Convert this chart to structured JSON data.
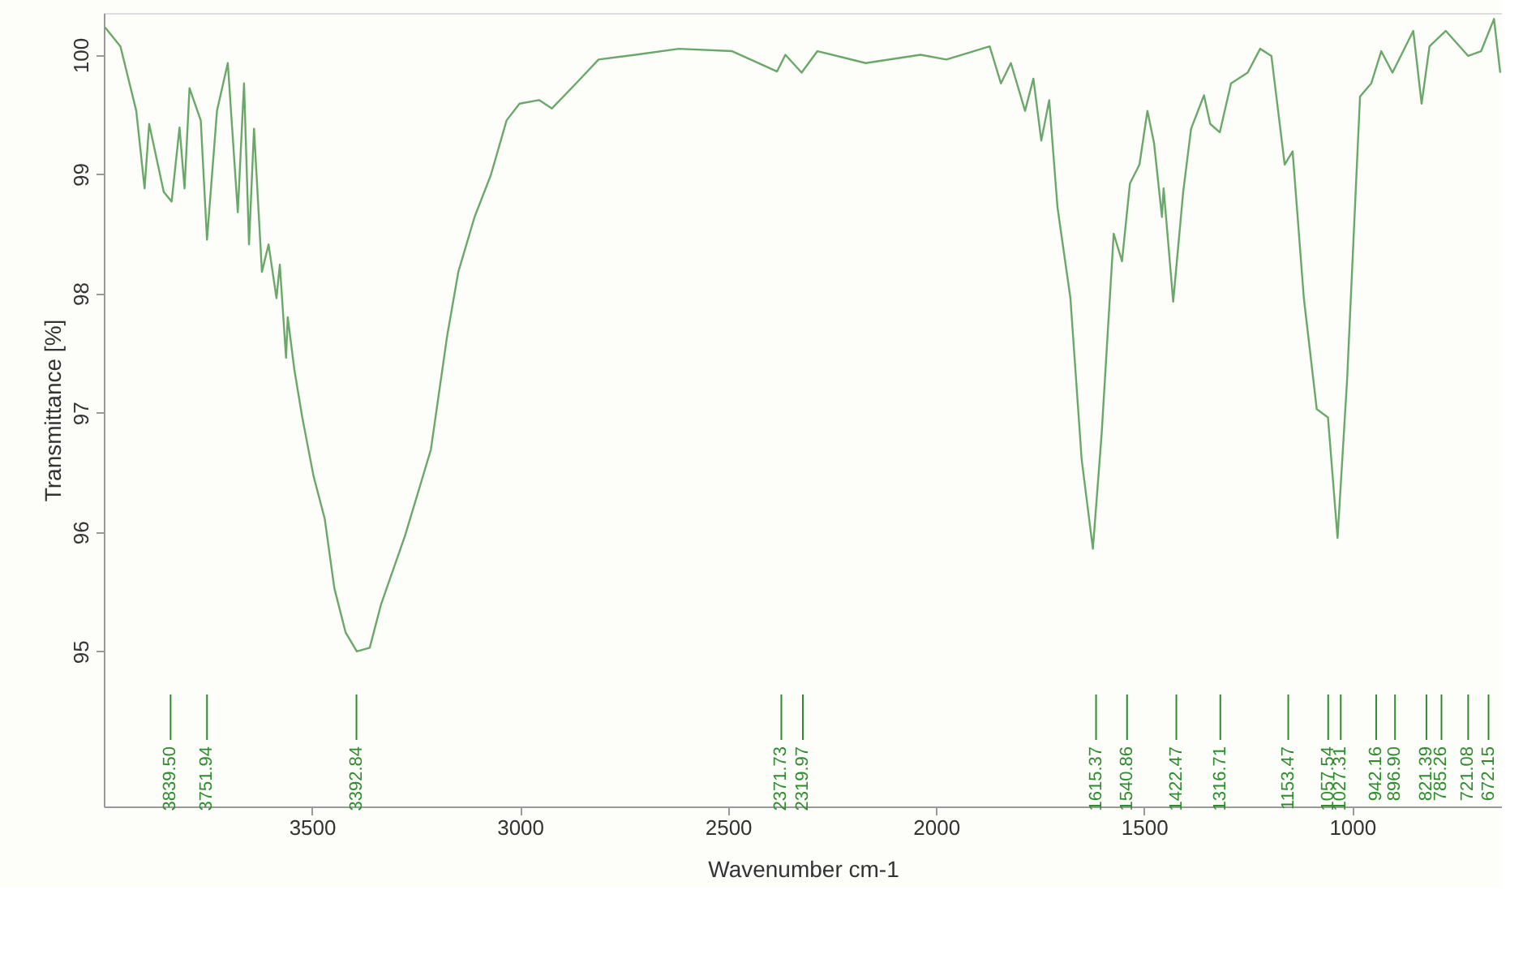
{
  "chart_data": {
    "type": "line",
    "xlabel": "Wavenumber cm-1",
    "ylabel": "Transmittance [%]",
    "xlim": [
      4000,
      640
    ],
    "ylim": [
      93.7,
      100.35
    ],
    "xticks": [
      3500,
      3000,
      2500,
      2000,
      1500,
      1000
    ],
    "yticks": [
      95,
      96,
      97,
      98,
      99,
      100
    ],
    "grid": false,
    "marker": "none",
    "line_style": "solid",
    "series": [
      {
        "color": "#6aa86a",
        "x": [
          3997,
          3960,
          3922,
          3902,
          3891,
          3856,
          3837,
          3818,
          3806,
          3794,
          3767,
          3752,
          3728,
          3702,
          3678,
          3663,
          3651,
          3639,
          3620,
          3604,
          3585,
          3577,
          3562,
          3558,
          3542,
          3523,
          3496,
          3469,
          3446,
          3419,
          3392,
          3361,
          3334,
          3276,
          3214,
          3175,
          3148,
          3109,
          3070,
          3032,
          3001,
          2954,
          2923,
          2865,
          2811,
          2722,
          2618,
          2490,
          2382,
          2362,
          2323,
          2285,
          2169,
          2037,
          1975,
          1871,
          1844,
          1820,
          1786,
          1766,
          1747,
          1728,
          1708,
          1677,
          1650,
          1623,
          1602,
          1573,
          1553,
          1534,
          1511,
          1492,
          1476,
          1457,
          1453,
          1430,
          1406,
          1387,
          1356,
          1341,
          1318,
          1291,
          1251,
          1221,
          1194,
          1162,
          1143,
          1116,
          1085,
          1058,
          1035,
          1012,
          981,
          954,
          930,
          903,
          853,
          833,
          814,
          775,
          721,
          690,
          659,
          644
        ],
        "values": [
          100.23,
          100.07,
          99.53,
          98.88,
          99.42,
          98.85,
          98.77,
          99.39,
          98.88,
          99.72,
          99.45,
          98.45,
          99.53,
          99.93,
          98.68,
          99.76,
          98.41,
          99.38,
          98.18,
          98.41,
          97.96,
          98.24,
          97.46,
          97.8,
          97.36,
          96.96,
          96.47,
          96.11,
          95.53,
          95.16,
          95.0,
          95.03,
          95.39,
          95.97,
          96.69,
          97.64,
          98.18,
          98.64,
          98.99,
          99.45,
          99.59,
          99.62,
          99.55,
          99.76,
          99.96,
          100.0,
          100.05,
          100.03,
          99.86,
          100.0,
          99.85,
          100.03,
          99.93,
          100.0,
          99.96,
          100.07,
          99.76,
          99.93,
          99.53,
          99.8,
          99.28,
          99.62,
          98.72,
          97.96,
          96.61,
          95.86,
          96.82,
          98.5,
          98.27,
          98.92,
          99.08,
          99.53,
          99.26,
          98.64,
          98.88,
          97.93,
          98.85,
          99.38,
          99.66,
          99.42,
          99.35,
          99.76,
          99.85,
          100.05,
          99.99,
          99.08,
          99.19,
          97.96,
          97.03,
          96.96,
          95.95,
          97.28,
          99.65,
          99.76,
          100.03,
          99.85,
          100.2,
          99.59,
          100.07,
          100.2,
          99.99,
          100.03,
          100.3,
          99.85
        ]
      }
    ],
    "ref_lines": [
      {
        "axis": "x",
        "value": 3839.5,
        "label": "3839.50",
        "color": "#2e8b2e"
      },
      {
        "axis": "x",
        "value": 3751.94,
        "label": "3751.94",
        "color": "#2e8b2e"
      },
      {
        "axis": "x",
        "value": 3392.84,
        "label": "3392.84",
        "color": "#2e8b2e"
      },
      {
        "axis": "x",
        "value": 2371.73,
        "label": "2371.73",
        "color": "#2e8b2e"
      },
      {
        "axis": "x",
        "value": 2319.97,
        "label": "2319.97",
        "color": "#2e8b2e"
      },
      {
        "axis": "x",
        "value": 1615.37,
        "label": "1615.37",
        "color": "#2e8b2e"
      },
      {
        "axis": "x",
        "value": 1540.86,
        "label": "1540.86",
        "color": "#2e8b2e"
      },
      {
        "axis": "x",
        "value": 1422.47,
        "label": "1422.47",
        "color": "#2e8b2e"
      },
      {
        "axis": "x",
        "value": 1316.71,
        "label": "1316.71",
        "color": "#2e8b2e"
      },
      {
        "axis": "x",
        "value": 1153.47,
        "label": "1153.47",
        "color": "#2e8b2e"
      },
      {
        "axis": "x",
        "value": 1057.54,
        "label": "1057.54",
        "color": "#2e8b2e"
      },
      {
        "axis": "x",
        "value": 1027.31,
        "label": "1027.31",
        "color": "#2e8b2e"
      },
      {
        "axis": "x",
        "value": 942.16,
        "label": "942.16",
        "color": "#2e8b2e"
      },
      {
        "axis": "x",
        "value": 896.9,
        "label": "896.90",
        "color": "#2e8b2e"
      },
      {
        "axis": "x",
        "value": 821.39,
        "label": "821.39",
        "color": "#2e8b2e"
      },
      {
        "axis": "x",
        "value": 785.26,
        "label": "785.26",
        "color": "#2e8b2e"
      },
      {
        "axis": "x",
        "value": 721.08,
        "label": "721.08",
        "color": "#2e8b2e"
      },
      {
        "axis": "x",
        "value": 672.15,
        "label": "672.15",
        "color": "#2e8b2e"
      }
    ]
  }
}
